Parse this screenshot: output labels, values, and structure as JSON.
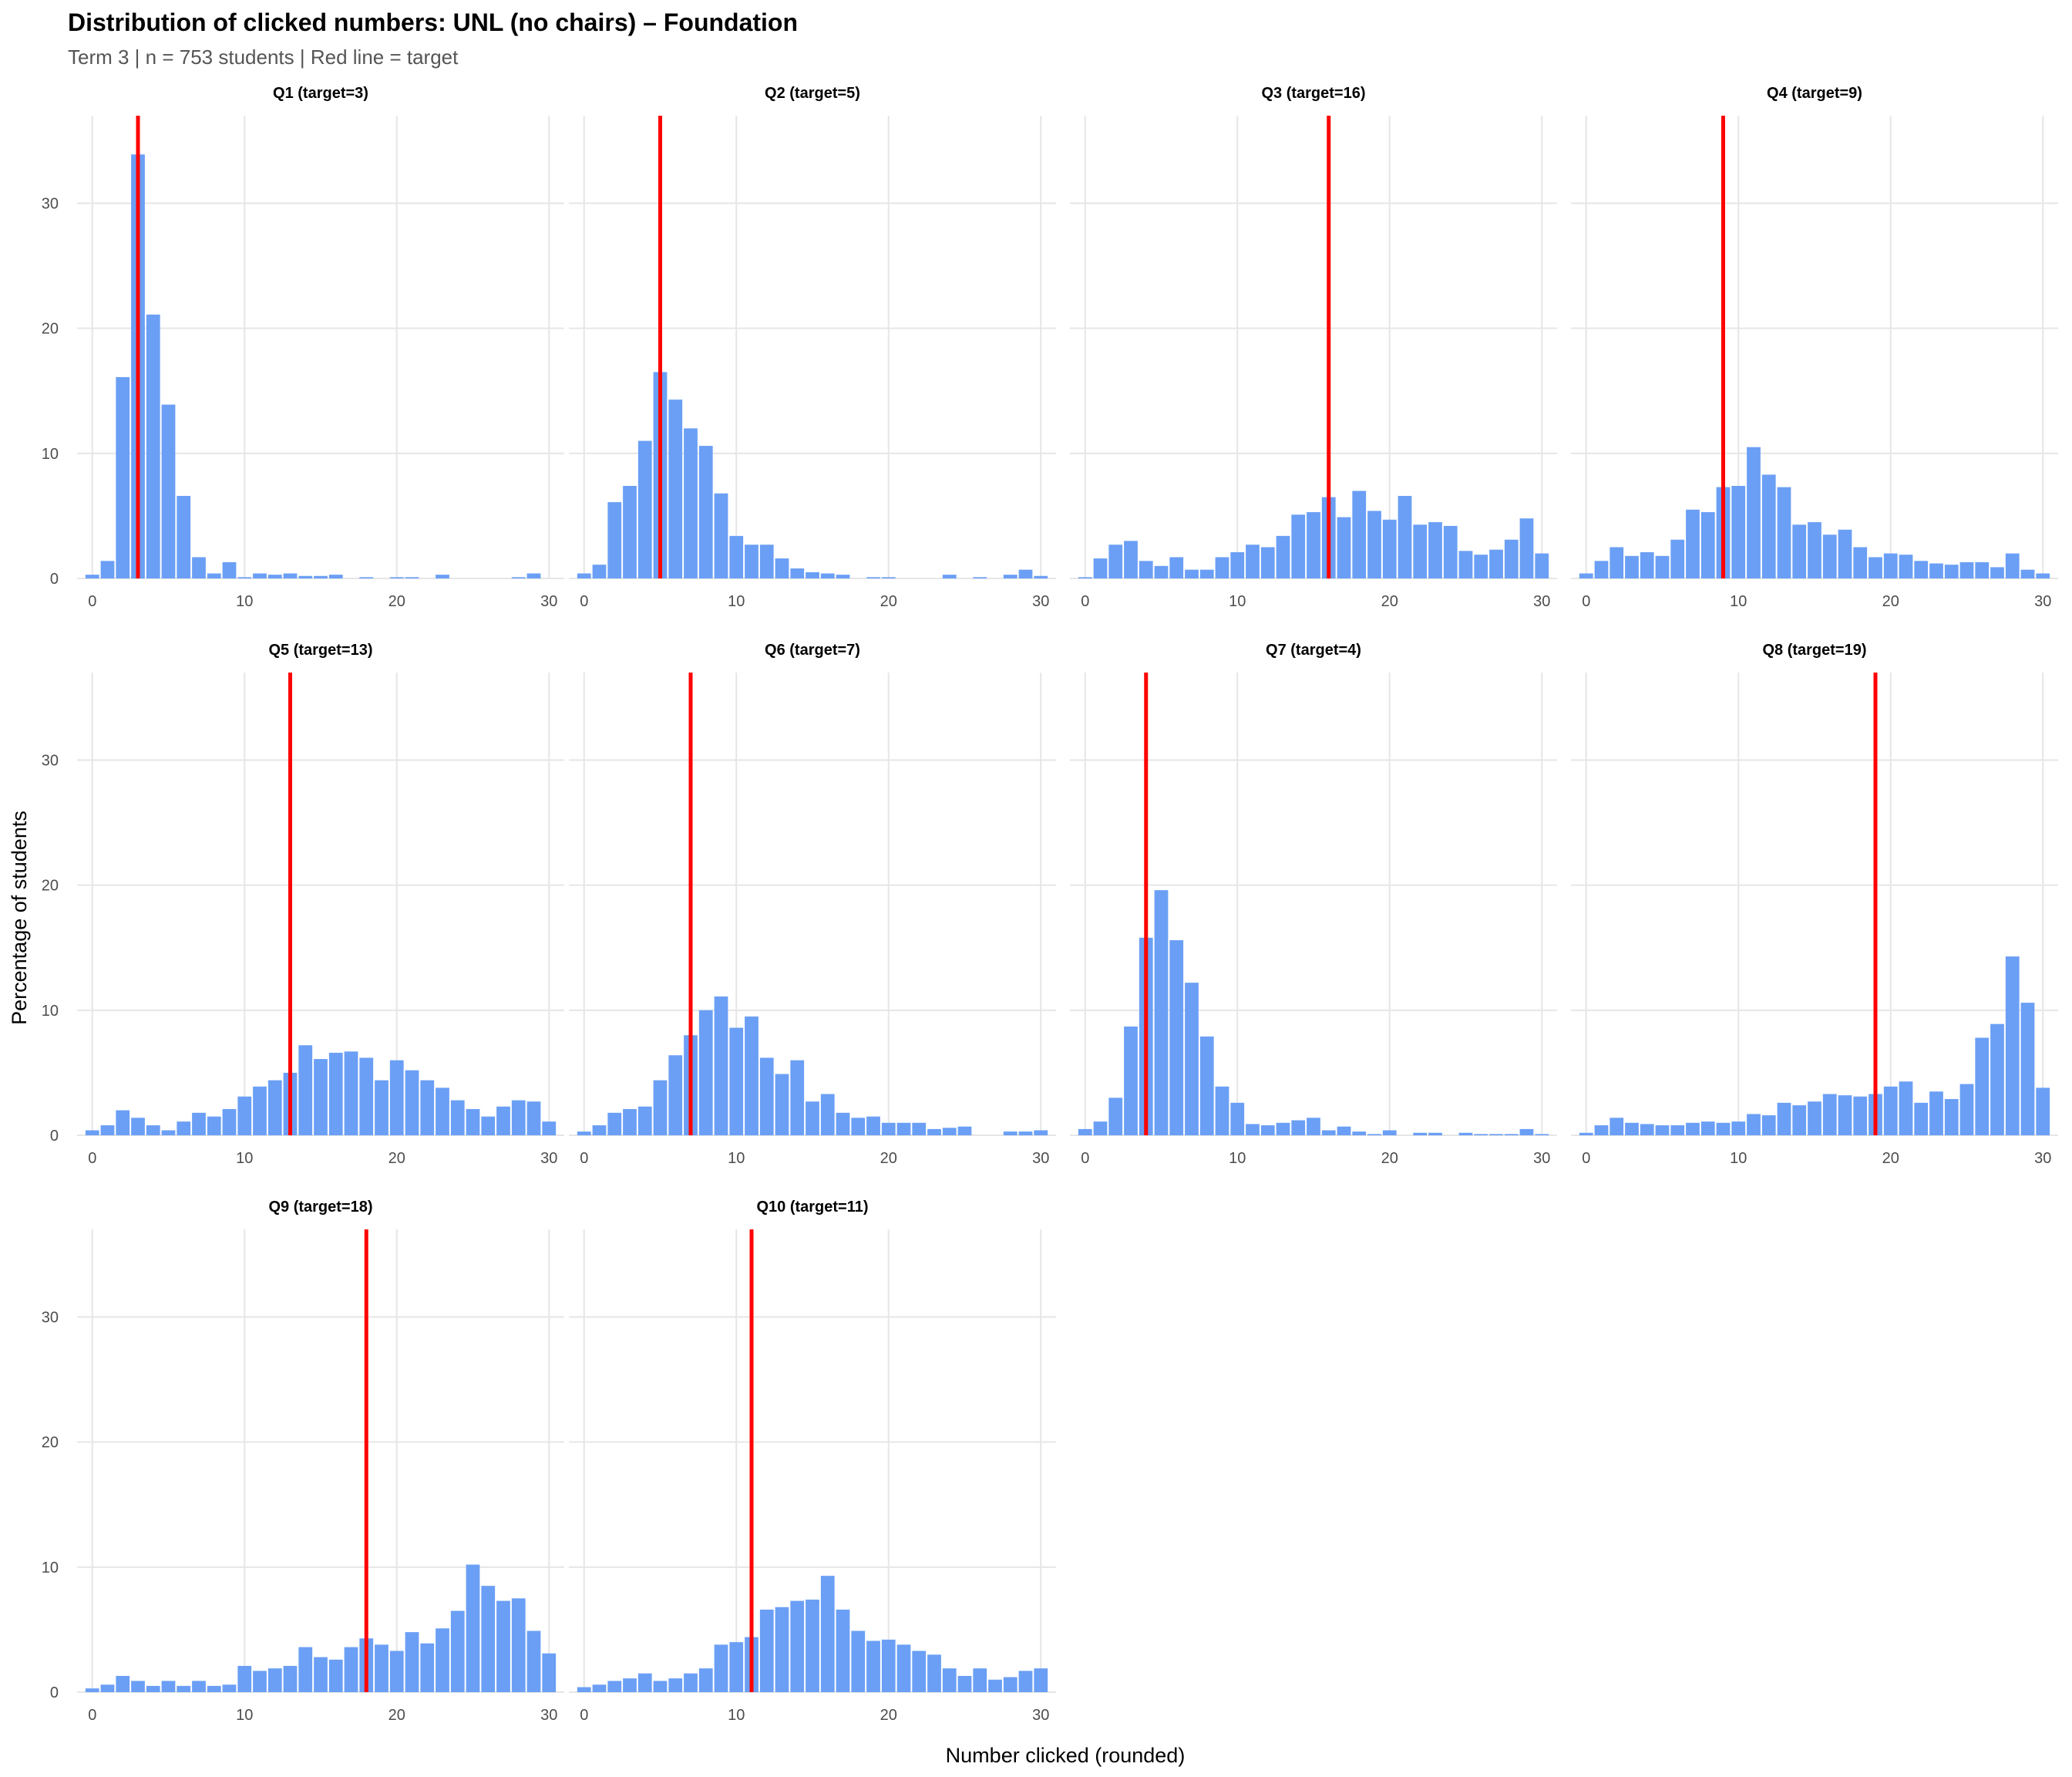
{
  "title": "Distribution of clicked numbers: UNL (no chairs) – Foundation",
  "subtitle": "Term 3 | n = 753 students | Red line = target",
  "colors": {
    "bar": "#6b9ff5",
    "target_line": "#ff0000",
    "grid": "#e6e6e6",
    "text": "#000000",
    "tick_text": "#4d4d4d",
    "subtitle_text": "#555555"
  },
  "chart_data": {
    "type": "bar",
    "facet_layout": "4 columns, 3 rows",
    "xlabel": "Number clicked (rounded)",
    "ylabel": "Percentage of students",
    "xlim": [
      -1,
      31
    ],
    "ylim": [
      0,
      37
    ],
    "x_ticks": [
      0,
      10,
      20,
      30
    ],
    "y_ticks": [
      0,
      10,
      20,
      30
    ],
    "grid": true,
    "x": [
      0,
      1,
      2,
      3,
      4,
      5,
      6,
      7,
      8,
      9,
      10,
      11,
      12,
      13,
      14,
      15,
      16,
      17,
      18,
      19,
      20,
      21,
      22,
      23,
      24,
      25,
      26,
      27,
      28,
      29,
      30
    ],
    "panels": [
      {
        "label": "Q1 (target=3)",
        "target": 3,
        "values": [
          0.3,
          1.4,
          16.1,
          33.9,
          21.1,
          13.9,
          6.6,
          1.7,
          0.4,
          1.3,
          0.1,
          0.4,
          0.3,
          0.4,
          0.2,
          0.2,
          0.3,
          0,
          0.1,
          0,
          0.1,
          0.1,
          0,
          0.3,
          0,
          0,
          0,
          0,
          0.1,
          0.4,
          0
        ]
      },
      {
        "label": "Q2 (target=5)",
        "target": 5,
        "values": [
          0.4,
          1.1,
          6.1,
          7.4,
          11.0,
          16.5,
          14.3,
          12.0,
          10.6,
          6.8,
          3.4,
          2.7,
          2.7,
          1.6,
          0.8,
          0.5,
          0.4,
          0.3,
          0,
          0.1,
          0.1,
          0,
          0,
          0,
          0.3,
          0,
          0.1,
          0,
          0.3,
          0.7,
          0.2
        ]
      },
      {
        "label": "Q3 (target=16)",
        "target": 16,
        "values": [
          0.1,
          1.6,
          2.7,
          3.0,
          1.4,
          1.0,
          1.7,
          0.7,
          0.7,
          1.7,
          2.1,
          2.7,
          2.5,
          3.4,
          5.1,
          5.3,
          6.5,
          4.9,
          7.0,
          5.4,
          4.7,
          6.6,
          4.3,
          4.5,
          4.2,
          2.2,
          1.9,
          2.3,
          3.1,
          4.8,
          2.0
        ]
      },
      {
        "label": "Q4 (target=9)",
        "target": 9,
        "values": [
          0.4,
          1.4,
          2.5,
          1.8,
          2.1,
          1.8,
          3.1,
          5.5,
          5.3,
          7.3,
          7.4,
          10.5,
          8.3,
          7.3,
          4.3,
          4.5,
          3.5,
          3.9,
          2.5,
          1.7,
          2.0,
          1.9,
          1.4,
          1.2,
          1.1,
          1.3,
          1.3,
          0.9,
          2.0,
          0.7,
          0.4
        ]
      },
      {
        "label": "Q5 (target=13)",
        "target": 13,
        "values": [
          0.4,
          0.8,
          2.0,
          1.4,
          0.8,
          0.4,
          1.1,
          1.8,
          1.5,
          2.1,
          3.1,
          3.9,
          4.4,
          5.0,
          7.2,
          6.1,
          6.6,
          6.7,
          6.2,
          4.4,
          6.0,
          5.2,
          4.4,
          3.8,
          2.8,
          2.1,
          1.5,
          2.3,
          2.8,
          2.7,
          1.1
        ]
      },
      {
        "label": "Q6 (target=7)",
        "target": 7,
        "values": [
          0.3,
          0.8,
          1.8,
          2.1,
          2.3,
          4.4,
          6.4,
          8.0,
          10.0,
          11.1,
          8.6,
          9.5,
          6.2,
          4.9,
          6.0,
          2.7,
          3.3,
          1.8,
          1.4,
          1.5,
          1.0,
          1.0,
          1.0,
          0.5,
          0.6,
          0.7,
          0,
          0,
          0.3,
          0.3,
          0.4
        ]
      },
      {
        "label": "Q7 (target=4)",
        "target": 4,
        "values": [
          0.5,
          1.1,
          3.0,
          8.7,
          15.8,
          19.6,
          15.6,
          12.2,
          7.9,
          3.9,
          2.6,
          0.9,
          0.8,
          1.0,
          1.2,
          1.4,
          0.4,
          0.7,
          0.3,
          0.1,
          0.4,
          0,
          0.2,
          0.2,
          0,
          0.2,
          0.1,
          0.1,
          0.1,
          0.5,
          0.1
        ]
      },
      {
        "label": "Q8 (target=19)",
        "target": 19,
        "values": [
          0.2,
          0.8,
          1.4,
          1.0,
          0.9,
          0.8,
          0.8,
          1.0,
          1.1,
          1.0,
          1.1,
          1.7,
          1.6,
          2.6,
          2.4,
          2.7,
          3.3,
          3.2,
          3.1,
          3.3,
          3.9,
          4.3,
          2.6,
          3.5,
          2.9,
          4.1,
          7.8,
          8.9,
          14.3,
          10.6,
          3.8
        ]
      },
      {
        "label": "Q9 (target=18)",
        "target": 18,
        "values": [
          0.3,
          0.6,
          1.3,
          0.9,
          0.5,
          0.9,
          0.5,
          0.9,
          0.5,
          0.6,
          2.1,
          1.7,
          1.9,
          2.1,
          3.6,
          2.8,
          2.6,
          3.6,
          4.3,
          3.8,
          3.3,
          4.8,
          3.9,
          5.1,
          6.5,
          10.2,
          8.5,
          7.3,
          7.5,
          4.9,
          3.1
        ]
      },
      {
        "label": "Q10 (target=11)",
        "target": 11,
        "values": [
          0.4,
          0.6,
          0.9,
          1.1,
          1.5,
          0.9,
          1.1,
          1.5,
          1.9,
          3.8,
          4.0,
          4.4,
          6.6,
          6.8,
          7.3,
          7.4,
          9.3,
          6.6,
          4.9,
          4.1,
          4.2,
          3.8,
          3.3,
          3.0,
          1.9,
          1.3,
          1.9,
          1.0,
          1.2,
          1.7,
          1.9
        ]
      }
    ]
  }
}
